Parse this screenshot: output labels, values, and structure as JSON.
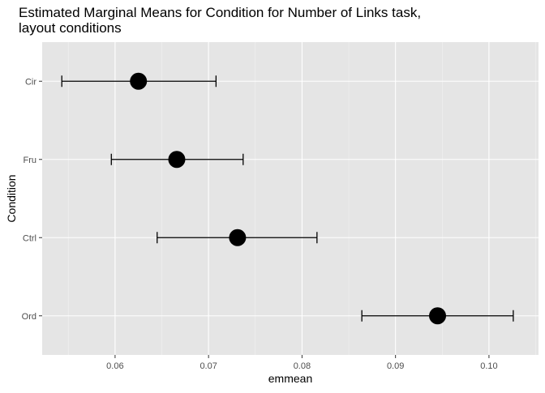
{
  "chart_data": {
    "type": "scatter",
    "title_lines": [
      "Estimated Marginal Means for Condition for Number of Links task,",
      "layout conditions"
    ],
    "xlabel": "emmean",
    "ylabel": "Condition",
    "xlim": [
      0.0522,
      0.1053
    ],
    "x_ticks": [
      0.06,
      0.07,
      0.08,
      0.09,
      0.1
    ],
    "x_tick_labels": [
      "0.06",
      "0.07",
      "0.08",
      "0.09",
      "0.10"
    ],
    "categories": [
      "Cir",
      "Fru",
      "Ctrl",
      "Ord"
    ],
    "points": [
      {
        "category": "Cir",
        "emmean": 0.0625,
        "lower": 0.0543,
        "upper": 0.0708
      },
      {
        "category": "Fru",
        "emmean": 0.0666,
        "lower": 0.0596,
        "upper": 0.0737
      },
      {
        "category": "Ctrl",
        "emmean": 0.0731,
        "lower": 0.0645,
        "upper": 0.0816
      },
      {
        "category": "Ord",
        "emmean": 0.0945,
        "lower": 0.0864,
        "upper": 0.1026
      }
    ],
    "grid": true,
    "colors": {
      "panel_background": "#e5e5e5",
      "grid_major": "#ffffff",
      "grid_minor": "#f2f2f2",
      "point": "#000000",
      "errorbar": "#000000"
    }
  }
}
